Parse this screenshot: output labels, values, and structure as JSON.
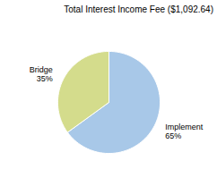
{
  "chart_data": {
    "type": "pie",
    "title": "Total Interest Income Fee ($1,092.64)",
    "categories": [
      "Implement",
      "Bridge"
    ],
    "values": [
      65,
      35
    ],
    "value_labels": [
      "65%",
      "35%"
    ],
    "colors": [
      "#a8c8e8",
      "#d4dc8c"
    ],
    "data_labels": true
  }
}
